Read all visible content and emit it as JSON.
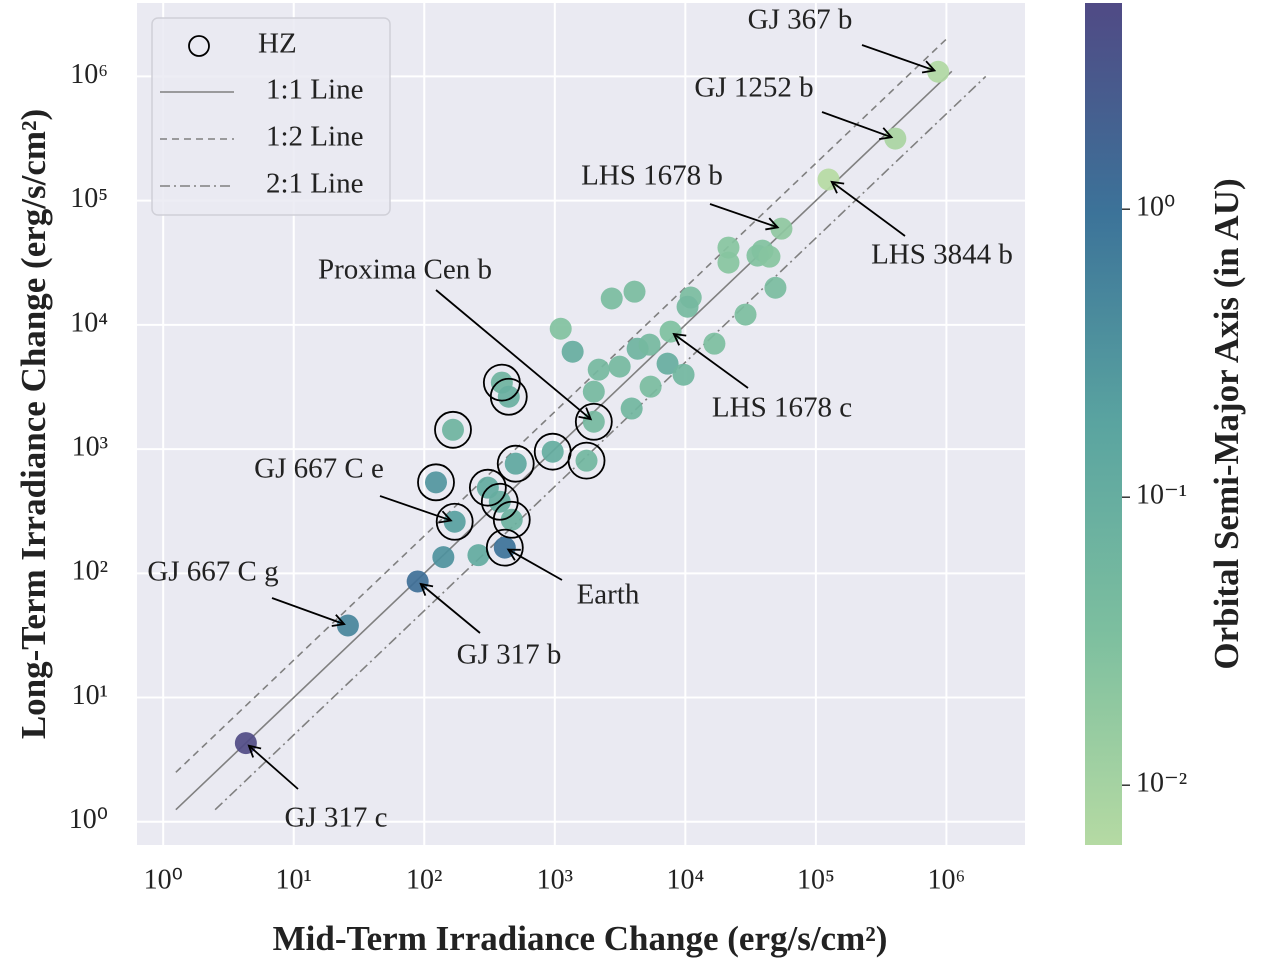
{
  "chart_data": {
    "type": "scatter",
    "xlabel": "Mid-Term Irradiance Change (erg/s/cm²)",
    "ylabel": "Long-Term Irradiance Change (erg/s/cm²)",
    "xscale": "log",
    "yscale": "log",
    "grid": true,
    "legend_loc": "upper left",
    "xlim": [
      0.63,
      4000000
    ],
    "ylim": [
      0.65,
      3900000
    ],
    "xticks": [
      {
        "value": 1,
        "label": "10⁰"
      },
      {
        "value": 10,
        "label": "10¹"
      },
      {
        "value": 100,
        "label": "10²"
      },
      {
        "value": 1000,
        "label": "10³"
      },
      {
        "value": 10000,
        "label": "10⁴"
      },
      {
        "value": 100000,
        "label": "10⁵"
      },
      {
        "value": 1000000,
        "label": "10⁶"
      }
    ],
    "yticks": [
      {
        "value": 1,
        "label": "10⁰"
      },
      {
        "value": 10,
        "label": "10¹"
      },
      {
        "value": 100,
        "label": "10²"
      },
      {
        "value": 1000,
        "label": "10³"
      },
      {
        "value": 10000,
        "label": "10⁴"
      },
      {
        "value": 100000,
        "label": "10⁵"
      },
      {
        "value": 1000000,
        "label": "10⁶"
      }
    ],
    "colorbar": {
      "label": "Orbital Semi-Major Axis (in AU)",
      "scale": "log",
      "lim": [
        0.0062,
        5.2
      ],
      "ticks": [
        {
          "value": 1,
          "label": "10⁰"
        },
        {
          "value": 0.1,
          "label": "10⁻¹"
        },
        {
          "value": 0.01,
          "label": "10⁻²"
        }
      ],
      "colormap": [
        "#b5daa3",
        "#7dbf9f",
        "#5aa4a0",
        "#3c7399",
        "#504a85"
      ]
    },
    "hz_legend": "HZ",
    "lines": [
      {
        "name": "1:1 Line",
        "factor": 1,
        "style": "solid",
        "color": "#808080",
        "x": [
          1.25,
          1100000
        ]
      },
      {
        "name": "1:2 Line",
        "factor": 2,
        "style": "dashed",
        "color": "#808080",
        "x": [
          1.25,
          1000000
        ]
      },
      {
        "name": "2:1 Line",
        "factor": 0.5,
        "style": "dashdot",
        "color": "#808080",
        "x": [
          2.5,
          2000000
        ]
      }
    ],
    "x": [
      4.3,
      26,
      89,
      140,
      260,
      414,
      171,
      123,
      307,
      379,
      468,
      502,
      964,
      1750,
      166,
      393,
      444,
      1990,
      1110,
      1370,
      1990,
      2170,
      3140,
      2730,
      4080,
      3880,
      5420,
      4310,
      5320,
      7310,
      7710,
      9690,
      11000,
      10400,
      16700,
      21400,
      21400,
      28900,
      39000,
      35700,
      44100,
      49000,
      54500,
      125000,
      406000,
      865000
    ],
    "y": [
      4.3,
      38,
      86,
      135,
      140,
      161,
      260,
      540,
      489,
      377,
      270,
      763,
      953,
      807,
      1430,
      3430,
      2640,
      1660,
      9310,
      6080,
      2900,
      4360,
      4610,
      16300,
      18500,
      2120,
      3180,
      6430,
      6930,
      4870,
      8820,
      3970,
      16600,
      14000,
      7060,
      41900,
      31700,
      12100,
      39600,
      36100,
      35400,
      19900,
      59500,
      148000,
      316000,
      1090000
    ],
    "c": [
      5,
      0.54,
      1.15,
      0.35,
      0.12,
      1,
      0.21,
      0.3,
      0.12,
      0.1,
      0.08,
      0.15,
      0.11,
      0.06,
      0.07,
      0.07,
      0.09,
      0.0485,
      0.03,
      0.1,
      0.05,
      0.05,
      0.05,
      0.04,
      0.04,
      0.06,
      0.04,
      0.07,
      0.05,
      0.1,
      0.032,
      0.06,
      0.04,
      0.05,
      0.035,
      0.025,
      0.025,
      0.035,
      0.03,
      0.03,
      0.025,
      0.04,
      0.02,
      0.006,
      0.009,
      0.0071
    ],
    "hz": [
      false,
      false,
      false,
      false,
      false,
      true,
      true,
      true,
      true,
      true,
      true,
      true,
      true,
      true,
      true,
      true,
      true,
      true,
      false,
      false,
      false,
      false,
      false,
      false,
      false,
      false,
      false,
      false,
      false,
      false,
      false,
      false,
      false,
      false,
      false,
      false,
      false,
      false,
      false,
      false,
      false,
      false,
      false,
      false,
      false,
      false
    ],
    "labels": [
      "GJ 317 c",
      "GJ 667 C g",
      "GJ 317 b",
      null,
      null,
      "Earth",
      "GJ 667 C e",
      null,
      null,
      null,
      null,
      null,
      null,
      null,
      null,
      null,
      null,
      "Proxima Cen b",
      null,
      null,
      null,
      null,
      null,
      null,
      null,
      null,
      null,
      null,
      null,
      null,
      "LHS 1678 c",
      null,
      null,
      null,
      null,
      null,
      null,
      null,
      null,
      null,
      null,
      null,
      "LHS 1678 b",
      "LHS 3844 b",
      "GJ 1252 b",
      "GJ 367 b"
    ]
  }
}
